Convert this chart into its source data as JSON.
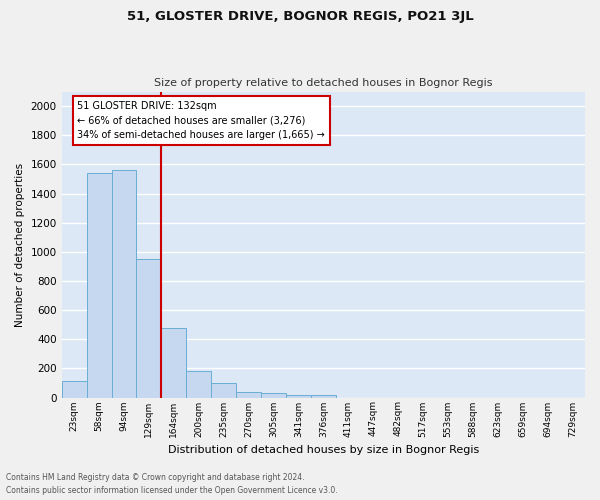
{
  "title": "51, GLOSTER DRIVE, BOGNOR REGIS, PO21 3JL",
  "subtitle": "Size of property relative to detached houses in Bognor Regis",
  "xlabel": "Distribution of detached houses by size in Bognor Regis",
  "ylabel": "Number of detached properties",
  "footnote1": "Contains HM Land Registry data © Crown copyright and database right 2024.",
  "footnote2": "Contains public sector information licensed under the Open Government Licence v3.0.",
  "categories": [
    "23sqm",
    "58sqm",
    "94sqm",
    "129sqm",
    "164sqm",
    "200sqm",
    "235sqm",
    "270sqm",
    "305sqm",
    "341sqm",
    "376sqm",
    "411sqm",
    "447sqm",
    "482sqm",
    "517sqm",
    "553sqm",
    "588sqm",
    "623sqm",
    "659sqm",
    "694sqm",
    "729sqm"
  ],
  "values": [
    110,
    1540,
    1560,
    950,
    480,
    180,
    100,
    40,
    28,
    18,
    18,
    0,
    0,
    0,
    0,
    0,
    0,
    0,
    0,
    0,
    0
  ],
  "bar_color": "#c5d8f0",
  "bar_edge_color": "#6aadd5",
  "background_color": "#dce8f5",
  "grid_color": "#ffffff",
  "vline_color": "#cc0000",
  "annotation_title": "51 GLOSTER DRIVE: 132sqm",
  "annotation_line1": "← 66% of detached houses are smaller (3,276)",
  "annotation_line2": "34% of semi-detached houses are larger (1,665) →",
  "annotation_box_color": "#ffffff",
  "annotation_box_edge": "#cc0000",
  "ylim": [
    0,
    2100
  ],
  "yticks": [
    0,
    200,
    400,
    600,
    800,
    1000,
    1200,
    1400,
    1600,
    1800,
    2000
  ],
  "fig_bg": "#f0f0f0"
}
